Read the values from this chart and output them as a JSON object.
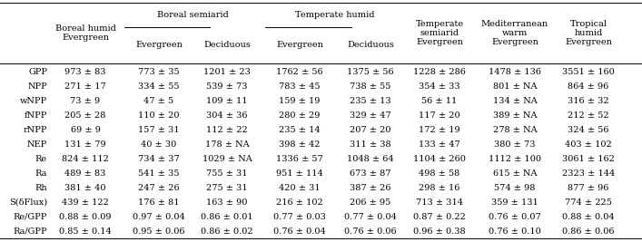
{
  "row_labels": [
    "GPP",
    "NPP",
    "wNPP",
    "fNPP",
    "rNPP",
    "NEP",
    "Re",
    "Ra",
    "Rh",
    "S(δFlux)",
    "Re/GPP",
    "Ra/GPP"
  ],
  "data": [
    [
      "973 ± 83",
      "773 ± 35",
      "1201 ± 23",
      "1762 ± 56",
      "1375 ± 56",
      "1228 ± 286",
      "1478 ± 136",
      "3551 ± 160"
    ],
    [
      "271 ± 17",
      "334 ± 55",
      "539 ± 73",
      "783 ± 45",
      "738 ± 55",
      "354 ± 33",
      "801 ± NA",
      "864 ± 96"
    ],
    [
      "73 ± 9",
      "47 ± 5",
      "109 ± 11",
      "159 ± 19",
      "235 ± 13",
      "56 ± 11",
      "134 ± NA",
      "316 ± 32"
    ],
    [
      "205 ± 28",
      "110 ± 20",
      "304 ± 36",
      "280 ± 29",
      "329 ± 47",
      "117 ± 20",
      "389 ± NA",
      "212 ± 52"
    ],
    [
      "69 ± 9",
      "157 ± 31",
      "112 ± 22",
      "235 ± 14",
      "207 ± 20",
      "172 ± 19",
      "278 ± NA",
      "324 ± 56"
    ],
    [
      "131 ± 79",
      "40 ± 30",
      "178 ± NA",
      "398 ± 42",
      "311 ± 38",
      "133 ± 47",
      "380 ± 73",
      "403 ± 102"
    ],
    [
      "824 ± 112",
      "734 ± 37",
      "1029 ± NA",
      "1336 ± 57",
      "1048 ± 64",
      "1104 ± 260",
      "1112 ± 100",
      "3061 ± 162"
    ],
    [
      "489 ± 83",
      "541 ± 35",
      "755 ± 31",
      "951 ± 114",
      "673 ± 87",
      "498 ± 58",
      "615 ± NA",
      "2323 ± 144"
    ],
    [
      "381 ± 40",
      "247 ± 26",
      "275 ± 31",
      "420 ± 31",
      "387 ± 26",
      "298 ± 16",
      "574 ± 98",
      "877 ± 96"
    ],
    [
      "439 ± 122",
      "176 ± 81",
      "163 ± 90",
      "216 ± 102",
      "206 ± 95",
      "713 ± 314",
      "359 ± 131",
      "774 ± 225"
    ],
    [
      "0.88 ± 0.09",
      "0.97 ± 0.04",
      "0.86 ± 0.01",
      "0.77 ± 0.03",
      "0.77 ± 0.04",
      "0.87 ± 0.22",
      "0.76 ± 0.07",
      "0.88 ± 0.04"
    ],
    [
      "0.85 ± 0.14",
      "0.95 ± 0.06",
      "0.86 ± 0.02",
      "0.76 ± 0.04",
      "0.76 ± 0.06",
      "0.96 ± 0.38",
      "0.76 ± 0.10",
      "0.86 ± 0.06"
    ]
  ],
  "col_headers": [
    "Boreal humid\nEvergreen",
    "Evergreen",
    "Deciduous",
    "Evergreen",
    "Deciduous",
    "Temperate\nsemiarid\nEvergreen",
    "Mediterranean\nwarm\nEvergreen",
    "Tropical\nhumid\nEvergreen"
  ],
  "group_labels": [
    "Boreal semiarid",
    "Temperate humid"
  ],
  "font_size": 7.0,
  "lw": 0.7
}
